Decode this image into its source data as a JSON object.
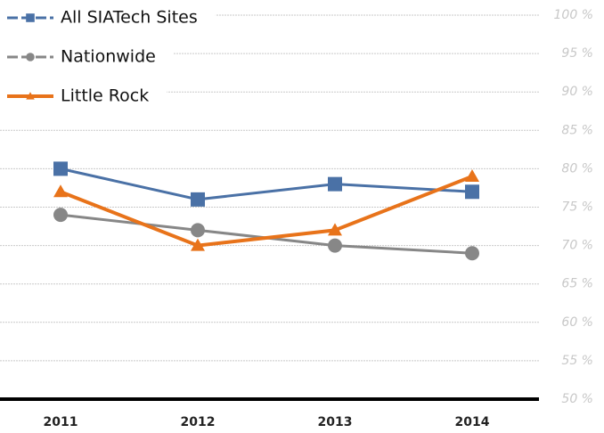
{
  "chart_data": {
    "type": "line",
    "categories": [
      "2011",
      "2012",
      "2013",
      "2014"
    ],
    "series": [
      {
        "name": "All SIATech Sites",
        "color": "#4a71a6",
        "marker": "square",
        "linewidth": 3,
        "values": [
          80,
          76,
          78,
          77
        ]
      },
      {
        "name": "Nationwide",
        "color": "#878787",
        "marker": "circle",
        "linewidth": 3,
        "values": [
          74,
          72,
          70,
          69
        ]
      },
      {
        "name": "Little Rock",
        "color": "#e8731a",
        "marker": "triangle",
        "linewidth": 4,
        "values": [
          77,
          70,
          72,
          79
        ]
      }
    ],
    "ylim": [
      50,
      100
    ],
    "yticks": [
      {
        "value": 50,
        "label": "50 %"
      },
      {
        "value": 55,
        "label": "55 %"
      },
      {
        "value": 60,
        "label": "60 %"
      },
      {
        "value": 65,
        "label": "65 %"
      },
      {
        "value": 70,
        "label": "70 %"
      },
      {
        "value": 75,
        "label": "75 %"
      },
      {
        "value": 80,
        "label": "80 %"
      },
      {
        "value": 85,
        "label": "85 %"
      },
      {
        "value": 90,
        "label": "90 %"
      },
      {
        "value": 95,
        "label": "95 %"
      },
      {
        "value": 100,
        "label": "100 %"
      }
    ],
    "grid": true,
    "y_axis_side": "right",
    "legend_position": "top-left"
  }
}
